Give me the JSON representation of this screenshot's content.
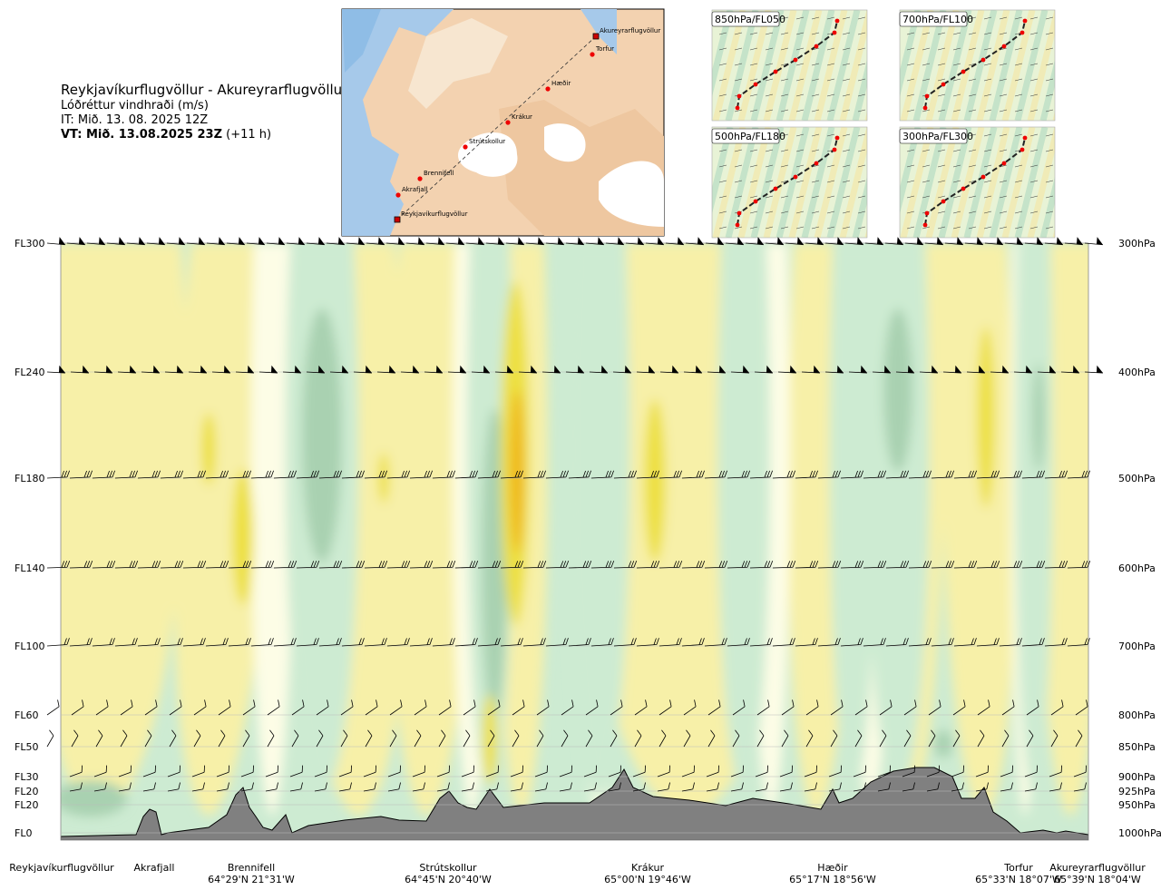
{
  "header": {
    "route": "Reykjavíkurflugvöllur - Akureyrarflugvöllur",
    "variable": "Lóðréttur vindhraði (m/s)",
    "issue_time": "IT: Mið. 13. 08. 2025 12Z",
    "valid_time": "VT: Mið. 13.08.2025 23Z",
    "lead_time": "(+11 h)"
  },
  "map": {
    "points": [
      {
        "name": "Reykjavíkurflugvöllur"
      },
      {
        "name": "Akrafjall"
      },
      {
        "name": "Brennifell"
      },
      {
        "name": "Strútskollur"
      },
      {
        "name": "Krákur"
      },
      {
        "name": "Hæðir"
      },
      {
        "name": "Torfur"
      },
      {
        "name": "Akureyrarflugvöllur"
      }
    ]
  },
  "mini_maps": [
    {
      "label": "850hPa/FL050"
    },
    {
      "label": "700hPa/FL100"
    },
    {
      "label": "500hPa/FL180"
    },
    {
      "label": "300hPa/FL300"
    }
  ],
  "chart_data": {
    "type": "heatmap",
    "title": "Lóðréttur vindhraði (m/s)",
    "levels": [
      {
        "fl": "FL300",
        "hpa": "300hPa"
      },
      {
        "fl": "FL240",
        "hpa": "400hPa"
      },
      {
        "fl": "FL180",
        "hpa": "500hPa"
      },
      {
        "fl": "FL140",
        "hpa": "600hPa"
      },
      {
        "fl": "FL100",
        "hpa": "700hPa"
      },
      {
        "fl": "FL60",
        "hpa": "800hPa"
      },
      {
        "fl": "FL50",
        "hpa": "850hPa"
      },
      {
        "fl": "FL30",
        "hpa": "900hPa"
      },
      {
        "fl": "FL20",
        "hpa": "925hPa"
      },
      {
        "fl": "FL20",
        "hpa": "950hPa"
      },
      {
        "fl": "FL0",
        "hpa": "1000hPa"
      }
    ],
    "waypoints": [
      {
        "name": "Reykjavíkurflugvöllur",
        "coord": ""
      },
      {
        "name": "Akrafjall",
        "coord": ""
      },
      {
        "name": "Brennifell",
        "coord": "64°29'N 21°31'W"
      },
      {
        "name": "Strútskollur",
        "coord": "64°45'N 20°40'W"
      },
      {
        "name": "Krákur",
        "coord": "65°00'N 19°46'W"
      },
      {
        "name": "Hæðir",
        "coord": "65°17'N 18°56'W"
      },
      {
        "name": "Torfur",
        "coord": "65°33'N 18°07'W"
      },
      {
        "name": "Akureyrarflugvöllur",
        "coord": "65°39'N 18°04'W"
      }
    ],
    "colors": {
      "sink_strong": "#7fb890",
      "sink_moderate": "#a9d1b1",
      "sink_weak": "#cdebd2",
      "neutral": "#fdfde6",
      "rise_weak": "#f7f0a8",
      "rise_moderate": "#ede043",
      "rise_strong": "#f0b81c",
      "terrain": "#808080"
    }
  }
}
